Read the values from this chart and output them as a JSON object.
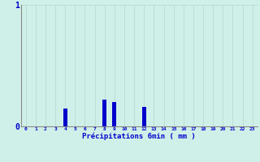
{
  "hours": [
    0,
    1,
    2,
    3,
    4,
    5,
    6,
    7,
    8,
    9,
    10,
    11,
    12,
    13,
    14,
    15,
    16,
    17,
    18,
    19,
    20,
    21,
    22,
    23
  ],
  "values": [
    0,
    0,
    0,
    0,
    0.15,
    0,
    0,
    0,
    0.22,
    0.2,
    0,
    0,
    0.16,
    0,
    0,
    0,
    0,
    0,
    0,
    0,
    0,
    0,
    0,
    0
  ],
  "bar_color": "#0000cc",
  "background_color": "#cff0e8",
  "grid_color": "#b0d8cc",
  "axis_color": "#888888",
  "text_color": "#0000cc",
  "title": "Précipitations 6min ( mm )",
  "ylim": [
    0,
    1
  ],
  "yticks": [
    0,
    1
  ]
}
